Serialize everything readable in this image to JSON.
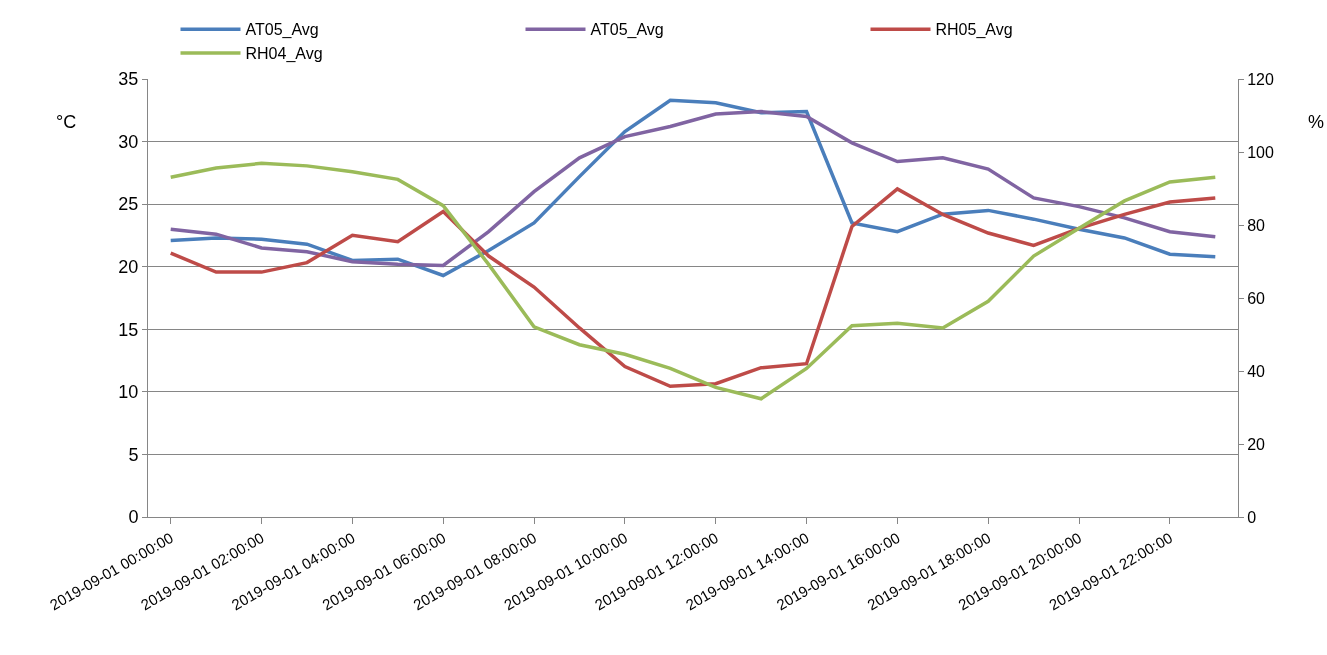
{
  "chart_data": {
    "type": "line",
    "categories": [
      "2019-09-01 00:00:00",
      null,
      "2019-09-01 02:00:00",
      null,
      "2019-09-01 04:00:00",
      null,
      "2019-09-01 06:00:00",
      null,
      "2019-09-01 08:00:00",
      null,
      "2019-09-01 10:00:00",
      null,
      "2019-09-01 12:00:00",
      null,
      "2019-09-01 14:00:00",
      null,
      "2019-09-01 16:00:00",
      null,
      "2019-09-01 18:00:00",
      null,
      "2019-09-01 20:00:00",
      null,
      "2019-09-01 22:00:00",
      null
    ],
    "ylabel": "°C",
    "y2label": "%",
    "ylim": [
      0,
      35
    ],
    "yticks": [
      0,
      5,
      10,
      15,
      20,
      25,
      30,
      35
    ],
    "y2lim": [
      0,
      120
    ],
    "y2ticks": [
      0,
      20,
      40,
      60,
      80,
      100,
      120
    ],
    "grid": "y",
    "legend": "top",
    "line_style": "solid",
    "marker": "none",
    "series": [
      {
        "name": "AT05_Avg",
        "color": "#4a7ebb",
        "values": [
          22.1,
          22.3,
          22.2,
          21.8,
          20.5,
          20.6,
          19.3,
          21.3,
          23.5,
          27.2,
          30.8,
          33.3,
          33.1,
          32.3,
          32.4,
          23.5,
          22.8,
          24.2,
          24.5,
          23.8,
          23.0,
          22.3,
          21.0,
          20.8
        ]
      },
      {
        "name": "AT05_Avg",
        "color": "#8064a2",
        "values": [
          23.0,
          22.6,
          21.5,
          21.2,
          20.4,
          20.2,
          20.1,
          22.8,
          26.0,
          28.7,
          30.4,
          31.2,
          32.2,
          32.4,
          32.0,
          29.9,
          28.4,
          28.7,
          27.8,
          25.5,
          24.8,
          23.9,
          22.8,
          22.4
        ]
      },
      {
        "name": "RH05_Avg",
        "color": "#be4b48",
        "axis": "y2",
        "values": [
          72.3,
          67.1,
          67.1,
          69.7,
          77.2,
          75.4,
          83.7,
          71.5,
          63.0,
          51.8,
          41.2,
          35.8,
          36.5,
          40.9,
          42.0,
          79.6,
          89.9,
          82.9,
          77.8,
          74.4,
          79.1,
          82.9,
          86.3,
          87.4
        ]
      },
      {
        "name": "RH04_Avg",
        "color": "#9bbb59",
        "axis": "y2",
        "values": [
          93.1,
          95.6,
          96.9,
          96.2,
          94.6,
          92.5,
          85.3,
          69.2,
          52.1,
          47.2,
          44.6,
          40.7,
          35.5,
          32.4,
          40.7,
          52.4,
          53.1,
          51.8,
          59.1,
          71.5,
          79.1,
          86.6,
          91.8,
          93.1
        ]
      }
    ]
  }
}
